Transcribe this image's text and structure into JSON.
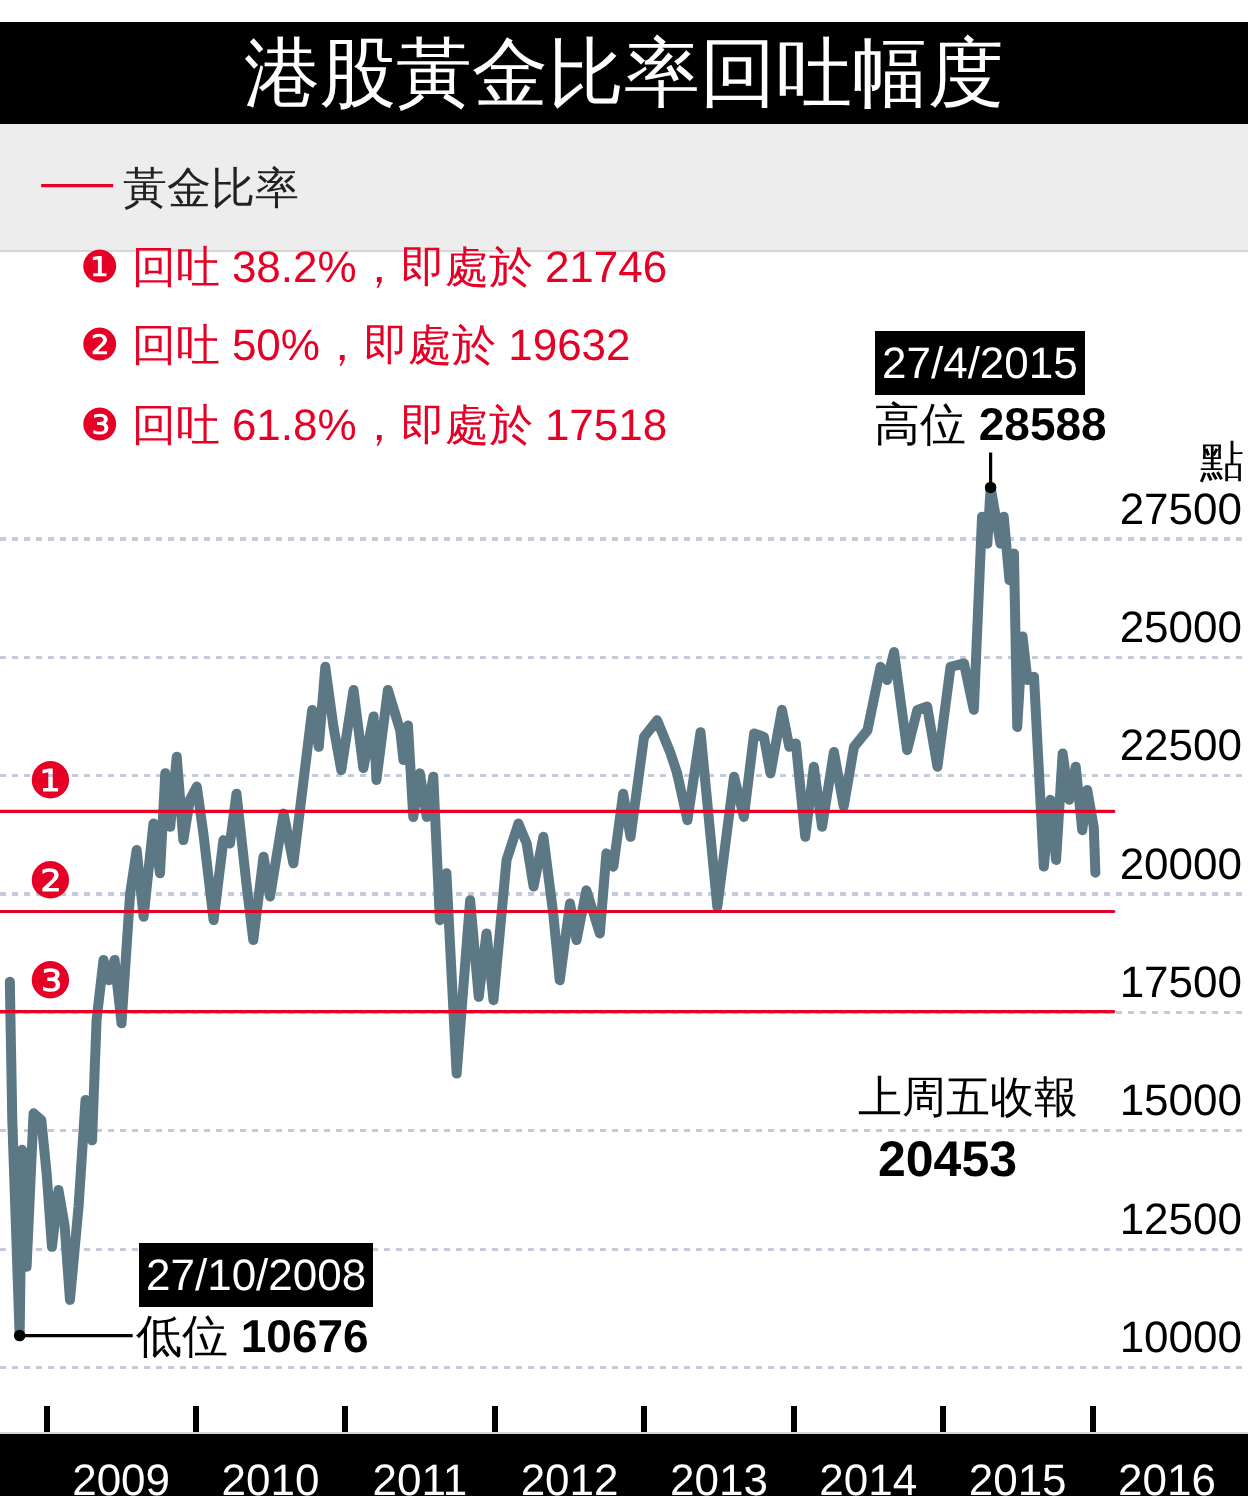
{
  "chart_data": {
    "type": "line",
    "title": "港股黃金比率回吐幅度",
    "ylabel": "點",
    "xlim": [
      "2008-09-09",
      "2017-01-15"
    ],
    "xticks": [
      {
        "value": "2009-01-01",
        "label": null
      },
      {
        "value": "2009-07-02",
        "label": "2009"
      },
      {
        "value": "2010-01-01",
        "label": null
      },
      {
        "value": "2010-07-02",
        "label": "2010"
      },
      {
        "value": "2011-01-01",
        "label": null
      },
      {
        "value": "2011-07-02",
        "label": "2011"
      },
      {
        "value": "2012-01-01",
        "label": null
      },
      {
        "value": "2012-07-02",
        "label": "2012"
      },
      {
        "value": "2013-01-01",
        "label": null
      },
      {
        "value": "2013-07-02",
        "label": "2013"
      },
      {
        "value": "2014-01-01",
        "label": null
      },
      {
        "value": "2014-07-02",
        "label": "2014"
      },
      {
        "value": "2015-01-01",
        "label": null
      },
      {
        "value": "2015-07-02",
        "label": "2015"
      },
      {
        "value": "2016-01-01",
        "label": null
      },
      {
        "value": "2016-07-01",
        "label": "2016"
      }
    ],
    "ylim": [
      8640,
      33560
    ],
    "yticks": [
      10000,
      12500,
      15000,
      17500,
      20000,
      22500,
      25000,
      27500
    ],
    "grid": "y",
    "legend": "top left",
    "series": [
      {
        "color": "#5d7885",
        "x": [
          "2008-10-03",
          "2008-10-09",
          "2008-10-27",
          "2008-11-02",
          "2008-11-13",
          "2008-11-30",
          "2008-12-19",
          "2009-01-01",
          "2009-01-14",
          "2009-01-30",
          "2009-02-14",
          "2009-02-27",
          "2009-03-20",
          "2009-04-06",
          "2009-04-22",
          "2009-05-03",
          "2009-05-20",
          "2009-06-02",
          "2009-06-16",
          "2009-07-03",
          "2009-07-24",
          "2009-08-09",
          "2009-08-26",
          "2009-09-19",
          "2009-10-05",
          "2009-10-18",
          "2009-10-30",
          "2009-11-15",
          "2009-12-01",
          "2009-12-17",
          "2010-01-03",
          "2010-01-19",
          "2010-02-13",
          "2010-03-09",
          "2010-03-25",
          "2010-04-10",
          "2010-05-05",
          "2010-05-21",
          "2010-06-15",
          "2010-07-01",
          "2010-08-03",
          "2010-08-27",
          "2010-10-12",
          "2010-10-28",
          "2010-11-13",
          "2010-12-03",
          "2010-12-22",
          "2011-01-21",
          "2011-02-14",
          "2011-03-11",
          "2011-03-18",
          "2011-04-15",
          "2011-05-15",
          "2011-05-23",
          "2011-06-03",
          "2011-06-16",
          "2011-07-02",
          "2011-07-19",
          "2011-08-04",
          "2011-08-20",
          "2011-09-05",
          "2011-09-30",
          "2011-11-02",
          "2011-11-23",
          "2011-12-12",
          "2011-12-29",
          "2012-01-30",
          "2012-02-28",
          "2012-03-19",
          "2012-04-05",
          "2012-04-29",
          "2012-05-23",
          "2012-06-08",
          "2012-07-03",
          "2012-07-19",
          "2012-08-12",
          "2012-09-14",
          "2012-09-30",
          "2012-10-17",
          "2012-11-10",
          "2012-11-28",
          "2012-12-31",
          "2013-02-01",
          "2013-03-06",
          "2013-03-22",
          "2013-04-16",
          "2013-05-18",
          "2013-06-28",
          "2013-08-08",
          "2013-09-01",
          "2013-09-26",
          "2013-10-20",
          "2013-11-05",
          "2013-12-03",
          "2013-12-21",
          "2014-01-06",
          "2014-01-29",
          "2014-02-19",
          "2014-03-11",
          "2014-04-09",
          "2014-05-03",
          "2014-05-28",
          "2014-06-30",
          "2014-08-01",
          "2014-08-17",
          "2014-09-03",
          "2014-10-05",
          "2014-10-30",
          "2014-11-23",
          "2014-12-18",
          "2015-01-19",
          "2015-02-21",
          "2015-03-17",
          "2015-04-06",
          "2015-04-19",
          "2015-04-27",
          "2015-05-21",
          "2015-05-29",
          "2015-06-12",
          "2015-06-23",
          "2015-07-01",
          "2015-07-14",
          "2015-07-26",
          "2015-08-11",
          "2015-09-04",
          "2015-09-20",
          "2015-10-04",
          "2015-10-20",
          "2015-11-05",
          "2015-11-21",
          "2015-12-07",
          "2015-12-19",
          "2016-01-04",
          "2016-01-08"
        ],
        "values": [
          18150,
          15230,
          10676,
          14600,
          12130,
          15370,
          15230,
          14100,
          12550,
          13750,
          12990,
          11430,
          13400,
          15650,
          14800,
          17340,
          18610,
          18180,
          18610,
          17270,
          20010,
          20930,
          19520,
          21490,
          20440,
          22550,
          21420,
          22900,
          21140,
          21990,
          22270,
          21280,
          19450,
          21140,
          21070,
          22120,
          20160,
          19030,
          20790,
          19950,
          21700,
          20650,
          23890,
          23110,
          24800,
          23530,
          22620,
          24310,
          22660,
          23750,
          22410,
          24310,
          23460,
          22830,
          23560,
          21630,
          22550,
          21630,
          22480,
          19450,
          20440,
          16210,
          19870,
          17830,
          19170,
          17760,
          20720,
          21490,
          21070,
          20160,
          21210,
          19590,
          18180,
          19800,
          19030,
          20080,
          19170,
          20860,
          20580,
          22120,
          21210,
          23320,
          23670,
          22970,
          22550,
          21560,
          23420,
          19730,
          22480,
          21630,
          23390,
          23320,
          22550,
          23890,
          23110,
          23180,
          21210,
          22690,
          21420,
          23000,
          21850,
          23110,
          23460,
          24800,
          24520,
          25110,
          23040,
          23890,
          23960,
          22690,
          24800,
          24870,
          23890,
          27970,
          27400,
          28588,
          27400,
          27970,
          26630,
          27190,
          23530,
          25440,
          24520,
          24590,
          20580,
          21990,
          20720,
          22970,
          21990,
          22690,
          21350,
          22200,
          21420,
          20453
        ]
      },
      {
        "name": "黃金比率",
        "color": "#e60026",
        "x": [
          "2008-09-09",
          "2016-02-22"
        ],
        "values": [
          21746,
          21746
        ]
      },
      {
        "color": "#e60026",
        "x": [
          "2008-09-09",
          "2016-02-22"
        ],
        "values": [
          19632,
          19632
        ]
      },
      {
        "color": "#e60026",
        "x": [
          "2008-09-09",
          "2016-02-22"
        ],
        "values": [
          17518,
          17518
        ]
      }
    ],
    "annotations": [
      "❶ 回吐 38.2%，即處於 21746",
      "❷ 回吐 50%，即處於 19632",
      "❸ 回吐 61.8%，即處於 17518",
      {
        "text": "❶",
        "x": "2009-01-08",
        "y": 21746
      },
      {
        "text": "❷",
        "x": "2009-01-08",
        "y": 19632
      },
      {
        "text": "❸",
        "x": "2009-01-08",
        "y": 17518
      },
      {
        "text": "27/4/2015",
        "x": "2015-04-27",
        "y": 28588
      },
      {
        "text": "高位 28588",
        "x": "2015-04-27",
        "y": 28588
      },
      {
        "text": "27/10/2008",
        "x": "2008-10-27",
        "y": 10676
      },
      {
        "text": "低位 10676",
        "x": "2008-10-27",
        "y": 10676
      },
      "上周五收報",
      "20453"
    ]
  }
}
